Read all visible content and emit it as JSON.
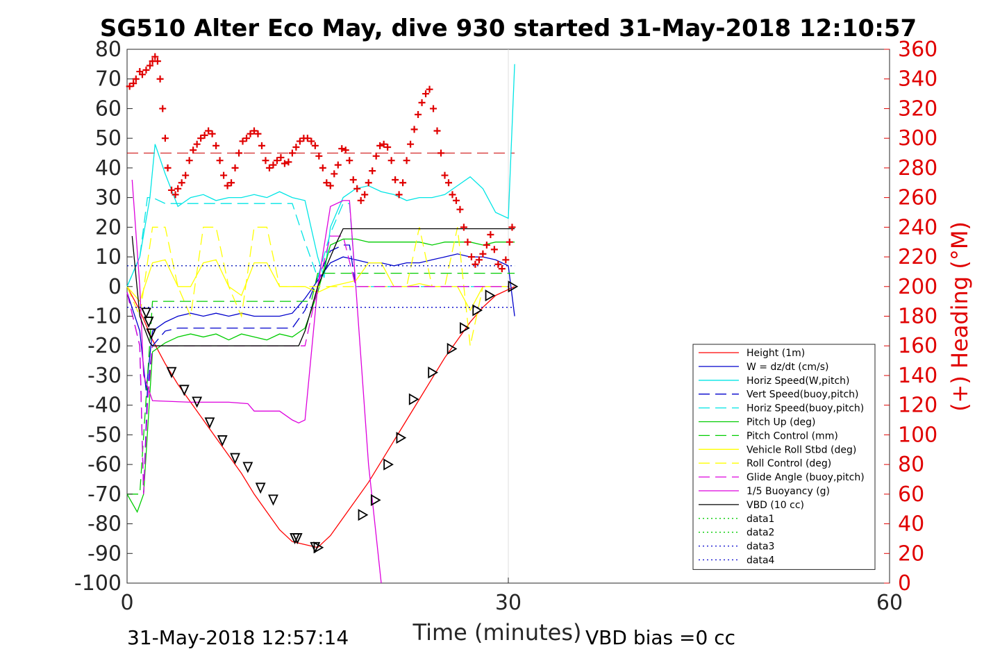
{
  "chart_data": {
    "type": "line",
    "title": "SG510 Alter Eco May, dive 930 started 31-May-2018 12:10:57",
    "xlabel": "Time (minutes)",
    "ylabel_right": "(+) Heading (°M)",
    "xlim": [
      0,
      60
    ],
    "ylim": [
      -100,
      80
    ],
    "ylim_right": [
      0,
      360
    ],
    "x_ticks": [
      "0",
      "30",
      "60"
    ],
    "x_tick_values": [
      0,
      30,
      60
    ],
    "y_ticks": [
      "80",
      "70",
      "60",
      "50",
      "40",
      "30",
      "20",
      "10",
      "0",
      "-10",
      "-20",
      "-30",
      "-40",
      "-50",
      "-60",
      "-70",
      "-80",
      "-90",
      "-100"
    ],
    "y_tick_values": [
      80,
      70,
      60,
      50,
      40,
      30,
      20,
      10,
      0,
      -10,
      -20,
      -30,
      -40,
      -50,
      -60,
      -70,
      -80,
      -90,
      -100
    ],
    "y_right_ticks": [
      "360",
      "340",
      "320",
      "300",
      "280",
      "260",
      "240",
      "220",
      "200",
      "180",
      "160",
      "140",
      "120",
      "100",
      "80",
      "60",
      "40",
      "20",
      "0"
    ],
    "y_right_tick_values": [
      360,
      340,
      320,
      300,
      280,
      260,
      240,
      220,
      200,
      180,
      160,
      140,
      120,
      100,
      80,
      60,
      40,
      20,
      0
    ],
    "grid": "x-only",
    "legend_position": "bottom-right",
    "series": [
      {
        "name": "Height (1m)",
        "color": "#ff0000",
        "style": "solid",
        "x": [
          0,
          1,
          2,
          3,
          4,
          5,
          6,
          7,
          8,
          9,
          10,
          11,
          12,
          13,
          14,
          15,
          16,
          17,
          18,
          19,
          20,
          21,
          22,
          23,
          24,
          25,
          26,
          27,
          28,
          29,
          30.5
        ],
        "y": [
          0,
          -8,
          -18,
          -26,
          -33,
          -39,
          -45,
          -51,
          -57,
          -63,
          -70,
          -76,
          -82,
          -86,
          -87,
          -88,
          -84,
          -78,
          -72,
          -66,
          -59,
          -52,
          -45,
          -38,
          -31,
          -24,
          -18,
          -12,
          -7,
          -3,
          0
        ]
      },
      {
        "name": "W = dz/dt (cm/s)",
        "color": "#0000cc",
        "style": "solid",
        "x": [
          0,
          1,
          1.5,
          2,
          3,
          4,
          5,
          6,
          7,
          8,
          9,
          10,
          11,
          12,
          13,
          14,
          15,
          16,
          17,
          18,
          19,
          20,
          21,
          22,
          23,
          24,
          25,
          26,
          27,
          28,
          29,
          30,
          30.5
        ],
        "y": [
          -2,
          -15,
          -35,
          -15,
          -12,
          -10,
          -9,
          -10,
          -9,
          -10,
          -9,
          -10,
          -10,
          -10,
          -9,
          -4,
          2,
          8,
          10,
          9,
          8,
          8,
          7,
          8,
          8,
          9,
          10,
          11,
          10,
          10,
          9,
          7,
          -10
        ]
      },
      {
        "name": "Horiz Speed(W,pitch)",
        "color": "#00e5e5",
        "style": "solid",
        "x": [
          0,
          1,
          1.8,
          2.2,
          3,
          4,
          5,
          6,
          7,
          8,
          9,
          10,
          11,
          12,
          13,
          14,
          15,
          15.5,
          16,
          17,
          18,
          19,
          20,
          21,
          22,
          23,
          24,
          25,
          26,
          27,
          28,
          29,
          30,
          30.5
        ],
        "y": [
          0,
          10,
          30,
          48,
          38,
          27,
          30,
          31,
          29,
          30,
          30,
          31,
          30,
          32,
          30,
          29,
          10,
          3,
          20,
          30,
          33,
          34,
          32,
          31,
          29,
          30,
          30,
          31,
          34,
          37,
          33,
          25,
          23,
          75
        ]
      },
      {
        "name": "Vert Speed(buoy,pitch)",
        "color": "#0000cc",
        "style": "dashed",
        "x": [
          0,
          1,
          1.3,
          1.6,
          2,
          3,
          4,
          5,
          6,
          7,
          8,
          9,
          10,
          11,
          12,
          13,
          14,
          15,
          16,
          17,
          17.5,
          18,
          20,
          25,
          30
        ],
        "y": [
          -2,
          -20,
          -70,
          -35,
          -20,
          -15,
          -14,
          -14,
          -14,
          -14,
          -14,
          -14,
          -14,
          -14,
          -14,
          -14,
          -8,
          3,
          12,
          14,
          14,
          0,
          0,
          0,
          0
        ]
      },
      {
        "name": "Horiz Speed(buoy,pitch)",
        "color": "#00e5e5",
        "style": "dashed",
        "x": [
          0,
          1,
          1.3,
          1.6,
          2,
          3,
          4,
          5,
          6,
          7,
          8,
          9,
          10,
          11,
          12,
          13,
          14,
          15,
          16,
          17,
          17.5,
          18,
          20,
          25,
          30
        ],
        "y": [
          0,
          10,
          20,
          30,
          30,
          28,
          28,
          28,
          28,
          28,
          28,
          28,
          28,
          28,
          28,
          28,
          15,
          3,
          18,
          28,
          28,
          0,
          0,
          0,
          0
        ]
      },
      {
        "name": "Pitch Up (deg)",
        "color": "#00cc00",
        "style": "solid",
        "x": [
          0,
          0.8,
          1.3,
          2,
          3,
          4,
          5,
          6,
          7,
          8,
          9,
          10,
          11,
          12,
          13,
          14,
          15,
          16,
          17,
          18,
          19,
          20,
          21,
          22,
          23,
          24,
          25,
          26,
          27,
          28,
          29,
          30,
          30.5
        ],
        "y": [
          -70,
          -76,
          -70,
          -22,
          -19,
          -17,
          -16,
          -17,
          -16,
          -18,
          -16,
          -17,
          -18,
          -16,
          -17,
          -14,
          -2,
          14,
          16,
          16,
          15,
          15,
          15,
          15,
          15,
          14,
          15,
          15,
          15,
          14,
          15,
          15,
          15
        ]
      },
      {
        "name": "Pitch Control (mm)",
        "color": "#00cc00",
        "style": "dashed",
        "x": [
          0,
          1,
          2,
          3,
          14,
          14.5,
          15,
          16,
          30,
          30.5
        ],
        "y": [
          -70,
          -70,
          -5,
          -5,
          -5,
          -5,
          4.5,
          4.5,
          4.5,
          4.5
        ]
      },
      {
        "name": "Vehicle Roll Stbd (deg)",
        "color": "#ffff00",
        "style": "solid",
        "x": [
          0,
          1,
          2,
          3,
          4,
          5,
          6,
          7,
          8,
          9,
          10,
          11,
          12,
          13,
          14,
          15,
          16,
          17,
          18,
          19,
          20,
          21,
          22,
          23,
          24,
          25,
          26,
          27,
          28,
          29,
          30
        ],
        "y": [
          0,
          -5,
          8,
          9,
          0,
          0,
          8,
          9,
          0,
          -3,
          8,
          8,
          0,
          0,
          0,
          -2,
          0,
          1,
          2,
          8,
          8,
          0,
          0,
          1,
          0,
          0,
          0,
          -8,
          0,
          0,
          0
        ]
      },
      {
        "name": "Roll Control (deg)",
        "color": "#ffff00",
        "style": "dashed",
        "x": [
          0,
          1,
          2,
          3,
          4,
          5,
          6,
          7,
          8,
          9,
          10,
          11,
          12,
          13,
          14,
          15,
          16,
          17,
          18,
          19,
          20,
          21,
          22,
          23,
          24,
          25,
          26,
          27,
          28,
          29,
          30
        ],
        "y": [
          0,
          -10,
          20,
          20,
          0,
          -10,
          20,
          20,
          0,
          -10,
          20,
          20,
          0,
          0,
          0,
          0,
          0,
          0,
          0,
          0,
          0,
          0,
          0,
          20,
          0,
          0,
          20,
          -20,
          0,
          0,
          0
        ]
      },
      {
        "name": "Glide Angle (buoy,pitch)",
        "color": "#dd00dd",
        "style": "dashed",
        "x": [
          0,
          1,
          1.3,
          1.6,
          2,
          3,
          14,
          15,
          16,
          17,
          18,
          20,
          25,
          30
        ],
        "y": [
          -2,
          -20,
          -70,
          -40,
          -20,
          -20,
          -20,
          0,
          17,
          17,
          0,
          0,
          0,
          0
        ]
      },
      {
        "name": "1/5 Buoyancy (g)",
        "color": "#dd00dd",
        "style": "solid",
        "x": [
          0.4,
          1,
          1.3,
          1.8,
          2,
          5,
          8,
          9.5,
          10,
          12,
          13,
          13.5,
          14,
          15,
          16,
          17,
          17.5,
          18,
          19,
          20
        ],
        "y": [
          36,
          0,
          -30,
          -36,
          -38.5,
          -39,
          -39,
          -39.5,
          -42,
          -42,
          -45,
          -46,
          -45,
          0,
          27,
          29,
          29,
          0,
          -60,
          -100
        ]
      },
      {
        "name": "VBD (10 cc)",
        "color": "#000000",
        "style": "solid",
        "x": [
          0.4,
          1,
          1.8,
          2,
          13.5,
          14,
          15,
          16,
          16.5,
          17,
          30.5
        ],
        "y": [
          17,
          -10,
          -19,
          -20,
          -20,
          -15,
          0,
          10,
          15,
          19.5,
          19.5
        ]
      },
      {
        "name": "data1",
        "color": "#00cc00",
        "style": "dotted",
        "x": [],
        "y": []
      },
      {
        "name": "data2",
        "color": "#00cc00",
        "style": "dotted",
        "x": [
          0,
          30.5
        ],
        "y": [
          7,
          7
        ]
      },
      {
        "name": "data3",
        "color": "#0000cc",
        "style": "dotted",
        "x": [
          0,
          30.5
        ],
        "y": [
          7,
          7
        ]
      },
      {
        "name": "data4",
        "color": "#0000cc",
        "style": "dotted",
        "x": [
          0,
          30.5
        ],
        "y": [
          -7,
          -7
        ]
      }
    ],
    "heading_reference": {
      "y_right": 290,
      "color": "#cc0000",
      "style": "dashed",
      "x": [
        0,
        30.5
      ]
    },
    "heading_points": {
      "marker": "+",
      "color": "#e00000",
      "x": [
        0.2,
        0.5,
        0.7,
        1.0,
        1.2,
        1.5,
        1.8,
        2.0,
        2.2,
        2.4,
        2.6,
        2.8,
        3.0,
        3.2,
        3.5,
        3.8,
        4.0,
        4.3,
        4.6,
        4.9,
        5.2,
        5.5,
        5.8,
        6.1,
        6.4,
        6.7,
        7.0,
        7.3,
        7.6,
        7.9,
        8.2,
        8.5,
        8.8,
        9.1,
        9.4,
        9.7,
        10.0,
        10.3,
        10.6,
        10.9,
        11.2,
        11.5,
        11.8,
        12.1,
        12.4,
        12.7,
        13.0,
        13.3,
        13.6,
        13.9,
        14.2,
        14.5,
        14.8,
        15.1,
        15.4,
        15.7,
        16.0,
        16.3,
        16.6,
        16.9,
        17.2,
        17.5,
        17.8,
        18.1,
        18.4,
        18.7,
        19.0,
        19.3,
        19.6,
        19.9,
        20.2,
        20.5,
        20.8,
        21.1,
        21.4,
        21.7,
        22.0,
        22.3,
        22.6,
        22.9,
        23.2,
        23.5,
        23.8,
        24.1,
        24.4,
        24.7,
        25.0,
        25.3,
        25.6,
        25.9,
        26.2,
        26.5,
        26.8,
        27.1,
        27.4,
        27.7,
        28.0,
        28.3,
        28.6,
        28.9,
        29.2,
        29.5,
        29.8,
        30.1,
        30.3
      ],
      "y_right": [
        335,
        337,
        340,
        345,
        343,
        346,
        349,
        352,
        355,
        352,
        340,
        320,
        300,
        280,
        265,
        262,
        266,
        270,
        275,
        285,
        292,
        296,
        300,
        302,
        305,
        303,
        295,
        285,
        275,
        268,
        270,
        280,
        290,
        298,
        300,
        303,
        305,
        303,
        295,
        285,
        280,
        282,
        285,
        287,
        283,
        284,
        290,
        294,
        298,
        300,
        300,
        298,
        295,
        288,
        280,
        270,
        268,
        276,
        282,
        293,
        292,
        285,
        272,
        266,
        258,
        262,
        270,
        278,
        288,
        295,
        296,
        294,
        285,
        272,
        262,
        270,
        285,
        296,
        306,
        316,
        324,
        330,
        333,
        320,
        305,
        290,
        275,
        270,
        262,
        258,
        252,
        240,
        230,
        220,
        215,
        218,
        222,
        228,
        235,
        225,
        215,
        212,
        218,
        230,
        240
      ]
    },
    "markers_height": {
      "x": [
        1.5,
        1.7,
        1.9,
        3.5,
        4.5,
        5.5,
        6.5,
        7.5,
        8.5,
        9.5,
        10.5,
        11.5,
        13.2,
        13.4,
        14.8,
        15.0,
        18.5,
        19.5,
        20.5,
        21.5,
        22.5,
        24,
        25.5,
        26.5,
        27.5,
        28.5,
        30.3
      ],
      "y": [
        -9,
        -12,
        -16,
        -29,
        -35,
        -39,
        -46,
        -52,
        -58,
        -61,
        -68,
        -72,
        -85,
        -85,
        -88,
        -88,
        -77,
        -72,
        -60,
        -51,
        -38,
        -29,
        -21,
        -14,
        -8,
        -3,
        0
      ]
    },
    "legend": [
      "Height (1m)",
      "W = dz/dt (cm/s)",
      "Horiz Speed(W,pitch)",
      "Vert Speed(buoy,pitch)",
      "Horiz Speed(buoy,pitch)",
      "Pitch Up (deg)",
      "Pitch Control (mm)",
      "Vehicle Roll Stbd (deg)",
      "Roll Control (deg)",
      "Glide Angle (buoy,pitch)",
      "1/5 Buoyancy (g)",
      "VBD (10 cc)",
      "data1",
      "data2",
      "data3",
      "data4"
    ]
  },
  "footer": {
    "timestamp": "31-May-2018 12:57:14",
    "vbd_bias": "VBD bias =0 cc"
  }
}
